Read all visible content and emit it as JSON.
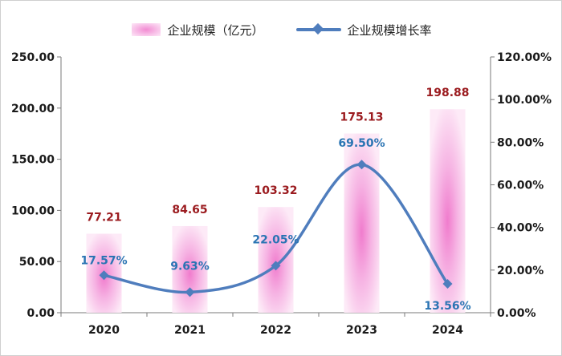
{
  "chart_data": {
    "type": "bar",
    "categories": [
      "2020",
      "2021",
      "2022",
      "2023",
      "2024"
    ],
    "series": [
      {
        "name": "企业规模（亿元）",
        "type": "bar",
        "axis": "left",
        "values": [
          77.21,
          84.65,
          103.32,
          175.13,
          198.88
        ],
        "labels": [
          "77.21",
          "84.65",
          "103.32",
          "175.13",
          "198.88"
        ],
        "color": "#f48fd6"
      },
      {
        "name": "企业规模增长率",
        "type": "line",
        "axis": "right",
        "values": [
          17.57,
          9.63,
          22.05,
          69.5,
          13.56
        ],
        "labels": [
          "17.57%",
          "9.63%",
          "22.05%",
          "69.50%",
          "13.56%"
        ],
        "color": "#4f7dbd"
      }
    ],
    "y_left": {
      "lim": [
        0,
        250
      ],
      "ticks": [
        "0.00",
        "50.00",
        "100.00",
        "150.00",
        "200.00",
        "250.00"
      ]
    },
    "y_right": {
      "lim": [
        0,
        120
      ],
      "ticks": [
        "0.00%",
        "20.00%",
        "40.00%",
        "60.00%",
        "80.00%",
        "100.00%",
        "120.00%"
      ]
    },
    "legend_position": "top-center",
    "grid": false,
    "colors": {
      "bar_label": "#9b1b1f",
      "line_label": "#2a74b3"
    }
  }
}
